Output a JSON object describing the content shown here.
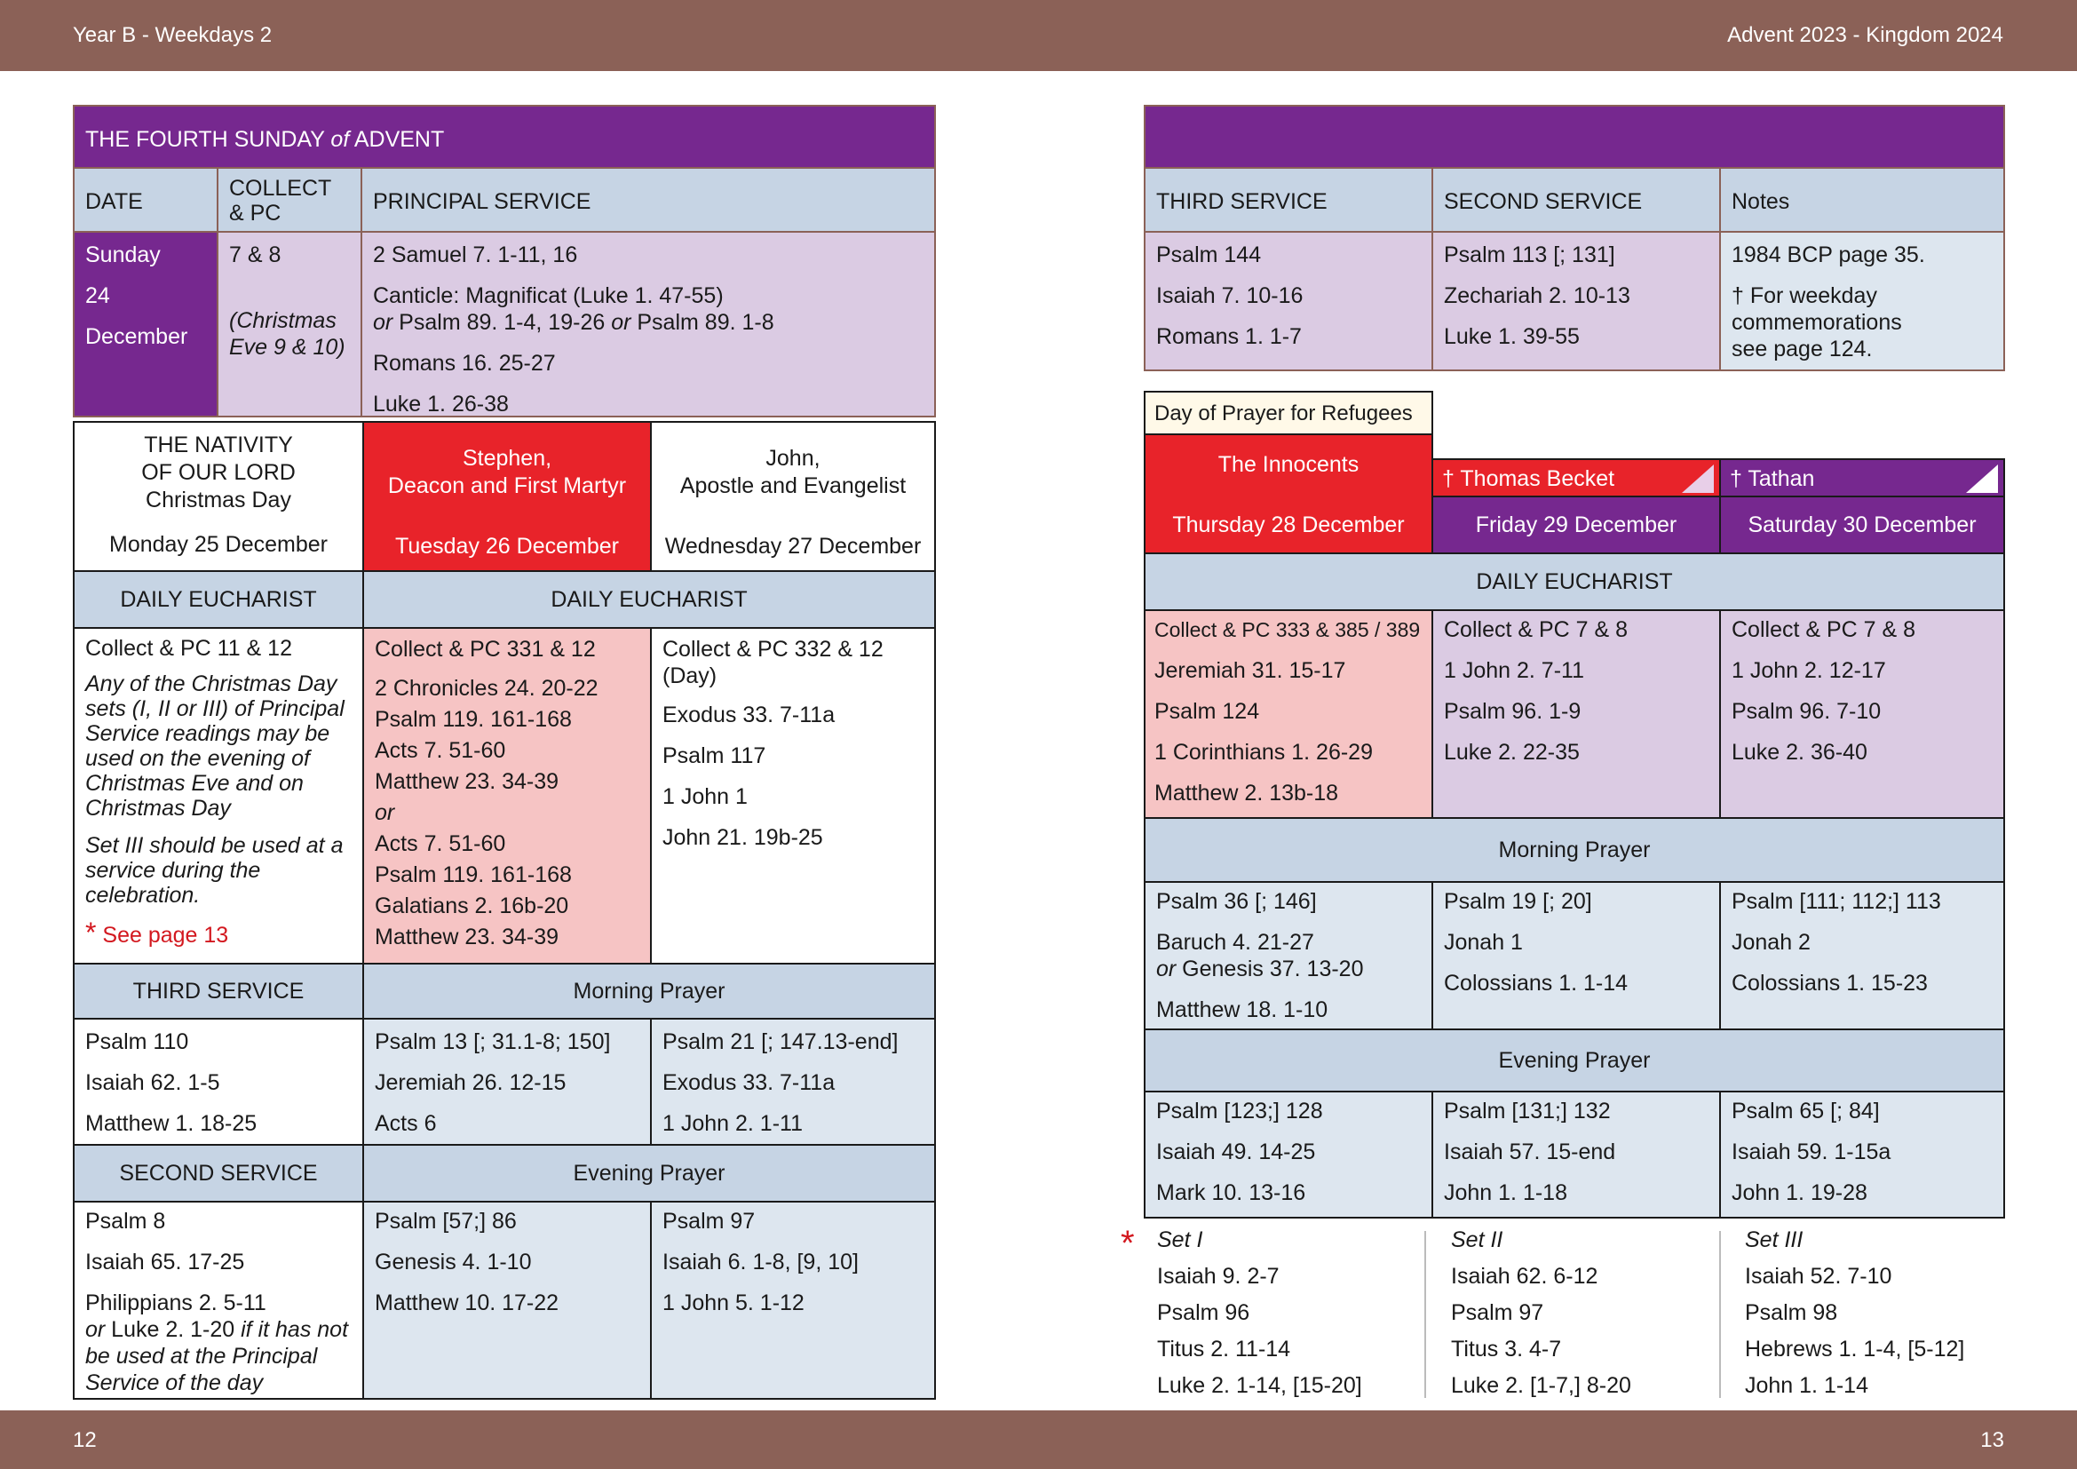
{
  "header": {
    "left": "Year B - Weekdays 2",
    "right": "Advent  2023 - Kingdom 2024"
  },
  "footer": {
    "left_page": "12",
    "right_page": "13"
  },
  "sunday": {
    "title_pre": "THE FOURTH SUNDAY ",
    "title_of": "of",
    "title_post": " ADVENT",
    "col_date": "DATE",
    "col_collect_1": "COLLECT",
    "col_collect_2": "& PC",
    "col_principal": "PRINCIPAL SERVICE",
    "date_1": "Sunday",
    "date_2": "24",
    "date_3": "December",
    "collect": "7 & 8",
    "collect_note_1": "(Christmas",
    "collect_note_2": "Eve 9 & 10)",
    "reading_1": "2 Samuel 7. 1-11, 16",
    "canticle_1": "Canticle: Magnificat (Luke 1. 47-55)",
    "canticle_or1": "or",
    "canticle_2": " Psalm 89. 1-4, 19-26 ",
    "canticle_or2": "or",
    "canticle_3": "  Psalm 89. 1-8",
    "reading_3": "Romans 16.  25-27",
    "reading_4": "Luke 1. 26-38",
    "third_service": "THIRD SERVICE",
    "second_service": "SECOND SERVICE",
    "notes": "Notes",
    "third": [
      "Psalm 144",
      "Isaiah 7. 10-16",
      "Romans 1. 1-7"
    ],
    "second": [
      "Psalm 113 [; 131]",
      "Zechariah 2. 10-13",
      "Luke 1. 39-55"
    ],
    "notes_1": "1984 BCP page 35.",
    "notes_2a": "† For weekday",
    "notes_2b": "commemorations",
    "notes_2c": "see page 124."
  },
  "christmas": {
    "name_1": "THE NATIVITY",
    "name_2": "OF OUR LORD",
    "name_3": "Christmas Day",
    "date": "Monday 25 December",
    "eucharist": "DAILY EUCHARIST",
    "collect": "Collect & PC 11 & 12",
    "note_1": "Any of the Christmas Day sets (I, II or III) of Principal Service readings may be used on the evening of Christmas Eve and on Christmas Day",
    "note_2": "Set III should be used at a service during the celebration.",
    "see_star": "*",
    "see": " See page 13",
    "third_service": "THIRD SERVICE",
    "third": [
      "Psalm 110",
      "Isaiah 62. 1-5",
      "Matthew 1. 18-25"
    ],
    "second_service": "SECOND SERVICE",
    "second_1": "Psalm 8",
    "second_2": "Isaiah 65. 17-25",
    "second_3": "Philippians 2. 5-11",
    "second_or": "or",
    "second_4": " Luke 2. 1-20 ",
    "second_5": "if it has not be used at the Principal Service of the day"
  },
  "stephen": {
    "name_1": "Stephen,",
    "name_2": "Deacon and First Martyr",
    "date": "Tuesday 26 December",
    "collect": "Collect & PC 331 & 12",
    "readings": [
      "2 Chronicles 24. 20-22",
      "Psalm 119. 161-168",
      "Acts 7. 51-60",
      "Matthew 23. 34-39"
    ],
    "or": "or",
    "readings_alt": [
      "Acts 7. 51-60",
      "Psalm 119. 161-168",
      "Galatians 2. 16b-20",
      "Matthew 23. 34-39"
    ],
    "morning": [
      "Psalm 13 [; 31.1-8; 150]",
      "Jeremiah 26. 12-15",
      "Acts 6"
    ],
    "evening": [
      "Psalm [57;] 86",
      "Genesis 4. 1-10",
      "Matthew 10. 17-22"
    ]
  },
  "john": {
    "name_1": "John,",
    "name_2": "Apostle and Evangelist",
    "date": "Wednesday 27 December",
    "collect": "Collect & PC 332 & 12 (Day)",
    "readings": [
      "Exodus 33. 7-11a",
      "Psalm 117",
      "1 John 1",
      "John 21. 19b-25"
    ],
    "morning": [
      "Psalm 21 [; 147.13-end]",
      "Exodus 33. 7-11a",
      "1 John 2. 1-11"
    ],
    "evening": [
      "Psalm 97",
      "Isaiah 6. 1-8, [9, 10]",
      "1 John 5. 1-12"
    ]
  },
  "labels": {
    "daily_eucharist": "DAILY EUCHARIST",
    "morning_prayer": "Morning Prayer",
    "evening_prayer": "Evening Prayer"
  },
  "innocents": {
    "banner": "Day of Prayer for Refugees",
    "name": "The Innocents",
    "date": "Thursday 28 December",
    "collect": "Collect & PC 333 & 385 / 389",
    "readings": [
      "Jeremiah 31. 15-17",
      "Psalm 124",
      "1 Corinthians 1. 26-29",
      "Matthew 2. 13b-18"
    ],
    "morning_1": "Psalm 36 [; 146]",
    "morning_2": "Baruch 4. 21-27",
    "morning_or": "or",
    "morning_3": " Genesis 37. 13-20",
    "morning_4": "Matthew 18. 1-10",
    "evening": [
      "Psalm [123;] 128",
      "Isaiah 49. 14-25",
      "Mark 10. 13-16"
    ]
  },
  "becket": {
    "name": "† Thomas Becket",
    "date": "Friday 29 December",
    "collect": "Collect & PC 7 & 8",
    "readings": [
      "1 John 2. 7-11",
      "Psalm 96. 1-9",
      "Luke 2. 22-35"
    ],
    "morning": [
      "Psalm 19 [; 20]",
      "Jonah 1",
      "Colossians 1. 1-14"
    ],
    "evening": [
      "Psalm [131;] 132",
      "Isaiah 57. 15-end",
      "John 1. 1-18"
    ]
  },
  "tathan": {
    "name": "† Tathan",
    "date": "Saturday 30 December",
    "collect": "Collect & PC 7 & 8",
    "readings": [
      "1 John 2. 12-17",
      "Psalm 96. 7-10",
      "Luke 2. 36-40"
    ],
    "morning": [
      "Psalm [111; 112;] 113",
      "Jonah 2",
      "Colossians 1. 15-23"
    ],
    "evening": [
      "Psalm 65 [; 84]",
      "Isaiah 59. 1-15a",
      "John 1. 19-28"
    ]
  },
  "sets": {
    "star": "*",
    "set1": {
      "title": "Set I",
      "items": [
        "Isaiah 9.  2-7",
        "Psalm 96",
        "Titus 2. 11-14",
        "Luke 2. 1-14, [15-20]"
      ]
    },
    "set2": {
      "title": "Set II",
      "items": [
        "Isaiah 62. 6-12",
        "Psalm 97",
        "Titus 3. 4-7",
        "Luke 2. [1-7,] 8-20"
      ]
    },
    "set3": {
      "title": "Set III",
      "items": [
        "Isaiah 52. 7-10",
        "Psalm 98",
        "Hebrews 1. 1-4, [5-12]",
        "John 1. 1-14"
      ]
    }
  },
  "colors": {
    "band": "#8b6157",
    "purple": "#76288f",
    "header_blue": "#c6d4e4",
    "lavender": "#dbcbe3",
    "pink": "#f6c4c4",
    "light_blue": "#dde6ef",
    "red": "#e8232a"
  }
}
